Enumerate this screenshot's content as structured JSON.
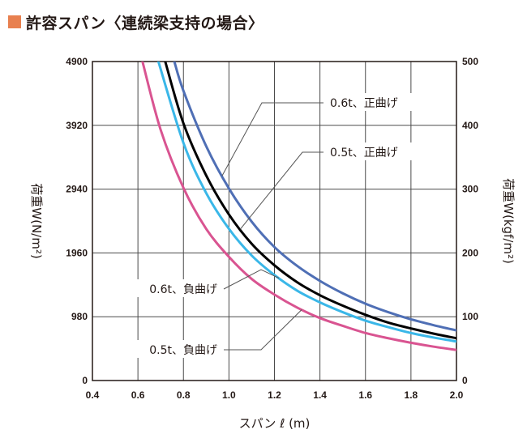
{
  "header": {
    "title": "許容スパン〈連続梁支持の場合〉",
    "marker_color": "#e8804f"
  },
  "chart_data": {
    "type": "line",
    "title": "許容スパン〈連続梁支持の場合〉",
    "xlabel": "スパン ℓ (m)",
    "ylabel_left": "荷重W(N/m²)",
    "ylabel_right": "荷重W(kgf/m²)",
    "xlim": [
      0.4,
      2.0
    ],
    "ylim_left": [
      0,
      4900
    ],
    "ylim_right": [
      0,
      500
    ],
    "x_ticks": [
      "0.4",
      "0.6",
      "0.8",
      "1.0",
      "1.2",
      "1.4",
      "1.6",
      "1.8",
      "2.0"
    ],
    "y_ticks_left": [
      "0",
      "980",
      "1960",
      "2940",
      "3920",
      "4900"
    ],
    "y_ticks_right": [
      "0",
      "100",
      "200",
      "300",
      "400",
      "500"
    ],
    "grid": true,
    "series": [
      {
        "name": "0.6t、正曲げ",
        "color": "#4f6fb5",
        "x": [
          0.76,
          0.8,
          0.9,
          1.0,
          1.1,
          1.2,
          1.3,
          1.4,
          1.5,
          1.6,
          1.7,
          1.8,
          1.9,
          2.0
        ],
        "y": [
          4900,
          4450,
          3600,
          2950,
          2440,
          2050,
          1760,
          1530,
          1340,
          1180,
          1050,
          940,
          850,
          770
        ]
      },
      {
        "name": "0.5t、正曲げ",
        "color": "#000000",
        "x": [
          0.72,
          0.8,
          0.9,
          1.0,
          1.1,
          1.2,
          1.3,
          1.4,
          1.5,
          1.6,
          1.7,
          1.8,
          1.9,
          2.0
        ],
        "y": [
          4900,
          3950,
          3150,
          2550,
          2100,
          1770,
          1510,
          1310,
          1150,
          1010,
          890,
          800,
          720,
          650
        ]
      },
      {
        "name": "0.6t、負曲げ",
        "color": "#3ab7e8",
        "x": [
          0.69,
          0.8,
          0.9,
          1.0,
          1.1,
          1.2,
          1.3,
          1.4,
          1.5,
          1.6,
          1.7,
          1.8,
          1.9,
          2.0
        ],
        "y": [
          4900,
          3650,
          2880,
          2330,
          1920,
          1620,
          1380,
          1200,
          1050,
          920,
          820,
          730,
          660,
          600
        ]
      },
      {
        "name": "0.5t、負曲げ",
        "color": "#d95491",
        "x": [
          0.62,
          0.7,
          0.8,
          0.9,
          1.0,
          1.1,
          1.2,
          1.3,
          1.4,
          1.5,
          1.6,
          1.7,
          1.8,
          1.9,
          2.0
        ],
        "y": [
          4900,
          3850,
          2960,
          2330,
          1900,
          1560,
          1320,
          1120,
          960,
          840,
          730,
          650,
          580,
          520,
          470
        ]
      }
    ]
  }
}
